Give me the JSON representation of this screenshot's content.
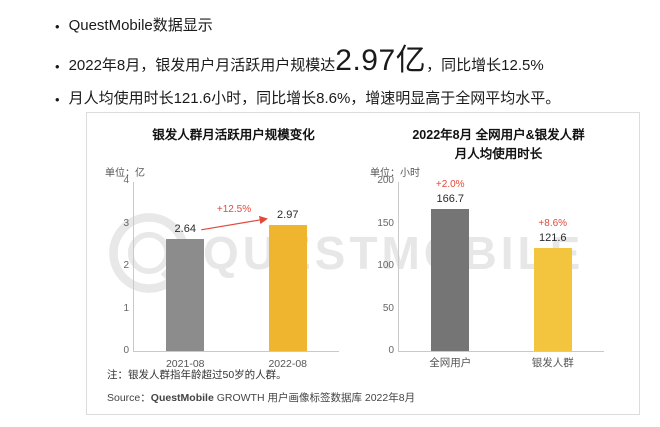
{
  "bullets": {
    "item1": "QuestMobile数据显示",
    "item2_prefix": "2022年8月，银发用户月活跃用户规模达",
    "item2_highlight": "2.97亿",
    "item2_suffix": "，同比增长12.5%",
    "item3": "月人均使用时长121.6小时，同比增长8.6%，增速明显高于全网平均水平。"
  },
  "watermark": {
    "text": "QUESTMOBILE"
  },
  "panel": {
    "note": "注：银发人群指年龄超过50岁的人群。",
    "source_label": "Source：",
    "source_brand": "QuestMobile",
    "source_rest": " GROWTH 用户画像标签数据库 2022年8月"
  },
  "colors": {
    "growth_red": "#e2493a",
    "brand_orange": "#e8622d",
    "gray_bar": "#8c8c8c",
    "dark_gray_bar": "#757575",
    "gold_bar": "#f0b52f"
  },
  "chart_data": [
    {
      "type": "bar",
      "title": "银发人群月活跃用户规模变化",
      "title2": "",
      "unit_label": "单位：亿",
      "categories": [
        "2021-08",
        "2022-08"
      ],
      "values": [
        2.64,
        2.97
      ],
      "ylim": [
        0,
        4
      ],
      "yticks": [
        0,
        1,
        2,
        3,
        4
      ],
      "bar_colors": [
        "#8c8c8c",
        "#f0b52f"
      ],
      "annotation": "+12.5%",
      "annotation_color": "#e2493a",
      "grid": false,
      "legend": "none"
    },
    {
      "type": "bar",
      "title": "2022年8月 全网用户&银发人群",
      "title2": "月人均使用时长",
      "unit_label": "单位：小时",
      "categories": [
        "全网用户",
        "银发人群"
      ],
      "values": [
        166.7,
        121.6
      ],
      "growth_labels": [
        "+2.0%",
        "+8.6%"
      ],
      "growth_color": "#e2493a",
      "ylim": [
        0,
        200
      ],
      "yticks": [
        0,
        50,
        100,
        150,
        200
      ],
      "bar_colors": [
        "#757575",
        "#f3c43e"
      ],
      "grid": false,
      "legend": "none"
    }
  ]
}
